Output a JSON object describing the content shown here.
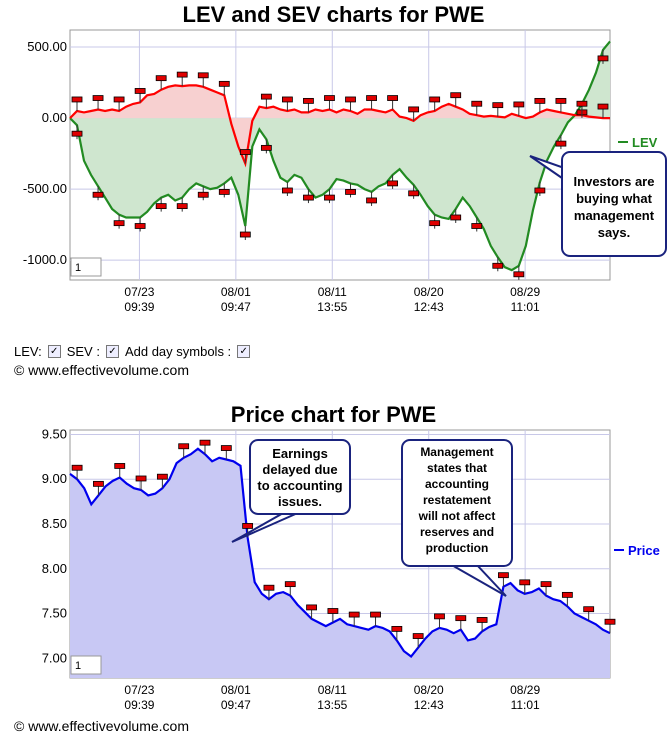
{
  "chart_data": [
    {
      "type": "line",
      "title": "LEV and SEV charts for PWE",
      "legend": [
        "LEV"
      ],
      "y_ticks": [
        "500.00",
        "0.00",
        "-500.00",
        "-1000.0"
      ],
      "ylim": [
        -1140,
        620
      ],
      "x_ticks": [
        {
          "date": "07/23",
          "time": "09:39"
        },
        {
          "date": "08/01",
          "time": "09:47"
        },
        {
          "date": "08/11",
          "time": "13:55"
        },
        {
          "date": "08/20",
          "time": "12:43"
        },
        {
          "date": "08/29",
          "time": "11:01"
        }
      ],
      "page_indicator": "1",
      "annotation": "Investors are buying what management says.",
      "series": [
        {
          "name": "LEV",
          "color": "#228b22",
          "values": [
            0,
            -50,
            -300,
            -400,
            -480,
            -560,
            -640,
            -680,
            -700,
            -700,
            -700,
            -660,
            -600,
            -560,
            -540,
            -580,
            -560,
            -500,
            -460,
            -480,
            -500,
            -490,
            -460,
            -420,
            -540,
            -760,
            -200,
            -80,
            -150,
            -300,
            -420,
            -450,
            -400,
            -420,
            -500,
            -560,
            -540,
            -500,
            -430,
            -440,
            -460,
            -470,
            -500,
            -520,
            -480,
            -460,
            -400,
            -360,
            -420,
            -470,
            -540,
            -620,
            -680,
            -700,
            -710,
            -640,
            -560,
            -620,
            -700,
            -780,
            -900,
            -980,
            -1050,
            -1070,
            -1040,
            -900,
            -650,
            -450,
            -300,
            -200,
            -120,
            -30,
            20,
            100,
            200,
            320,
            480,
            540
          ]
        },
        {
          "name": "",
          "color": "#ff0000",
          "values": [
            0,
            50,
            40,
            50,
            60,
            50,
            60,
            50,
            80,
            100,
            110,
            160,
            170,
            200,
            220,
            230,
            225,
            230,
            230,
            220,
            200,
            180,
            160,
            -40,
            -200,
            -320,
            -20,
            80,
            70,
            80,
            60,
            50,
            60,
            40,
            40,
            60,
            50,
            60,
            40,
            60,
            50,
            30,
            60,
            60,
            50,
            40,
            60,
            10,
            0,
            -20,
            20,
            40,
            50,
            80,
            100,
            80,
            60,
            30,
            20,
            10,
            15,
            10,
            5,
            30,
            15,
            0,
            10,
            40,
            60,
            50,
            40,
            30,
            20,
            20,
            10,
            5,
            0,
            0
          ]
        }
      ]
    },
    {
      "type": "area",
      "title": "Price chart for PWE",
      "legend": [
        "Price"
      ],
      "y_ticks": [
        "9.50",
        "9.00",
        "8.50",
        "8.00",
        "7.50",
        "7.00"
      ],
      "ylim": [
        6.78,
        9.55
      ],
      "x_ticks": [
        {
          "date": "07/23",
          "time": "09:39"
        },
        {
          "date": "08/01",
          "time": "09:47"
        },
        {
          "date": "08/11",
          "time": "13:55"
        },
        {
          "date": "08/20",
          "time": "12:43"
        },
        {
          "date": "08/29",
          "time": "11:01"
        }
      ],
      "page_indicator": "1",
      "annotations": [
        "Earnings delayed due to accounting issues.",
        "Management states that accounting restatement will not affect reserves and production"
      ],
      "series": [
        {
          "name": "Price",
          "color": "#0000ee",
          "values": [
            9.06,
            9.0,
            8.9,
            8.72,
            8.82,
            8.92,
            8.98,
            9.02,
            8.95,
            8.9,
            8.88,
            8.82,
            8.84,
            8.9,
            9.0,
            9.18,
            9.24,
            9.28,
            9.34,
            9.28,
            9.2,
            9.24,
            9.22,
            9.2,
            9.15,
            8.35,
            7.85,
            7.72,
            7.66,
            7.72,
            7.74,
            7.7,
            7.6,
            7.52,
            7.44,
            7.4,
            7.36,
            7.4,
            7.44,
            7.38,
            7.36,
            7.34,
            7.32,
            7.36,
            7.34,
            7.3,
            7.2,
            7.08,
            7.02,
            7.12,
            7.22,
            7.3,
            7.34,
            7.32,
            7.28,
            7.32,
            7.2,
            7.22,
            7.3,
            7.35,
            7.38,
            7.8,
            7.84,
            7.76,
            7.72,
            7.74,
            7.78,
            7.7,
            7.66,
            7.64,
            7.58,
            7.5,
            7.46,
            7.42,
            7.38,
            7.32,
            7.28
          ]
        }
      ]
    }
  ],
  "controls": {
    "lev_label": "LEV:",
    "sev_label": "SEV :",
    "day_symbols_label": "Add day symbols :",
    "check_mark": "✓"
  },
  "copyright": "© www.effectivevolume.com"
}
